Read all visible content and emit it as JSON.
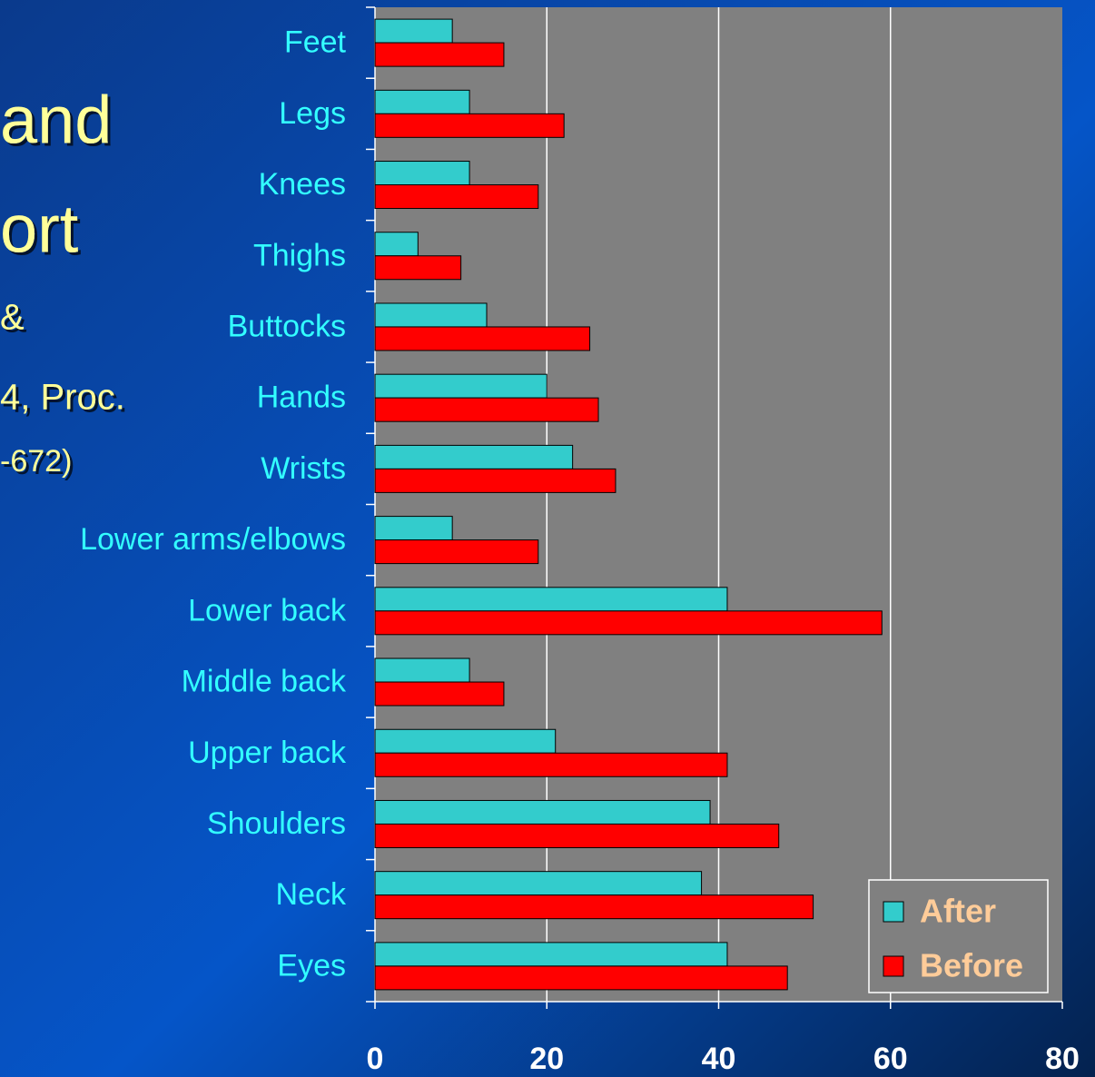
{
  "slide": {
    "text_lines": [
      "and",
      "ort",
      "&",
      "4, Proc.",
      "-672)"
    ]
  },
  "chart_data": {
    "type": "barh",
    "categories": [
      "Feet",
      "Legs",
      "Knees",
      "Thighs",
      "Buttocks",
      "Hands",
      "Wrists",
      "Lower arms/elbows",
      "Lower back",
      "Middle back",
      "Upper back",
      "Shoulders",
      "Neck",
      "Eyes"
    ],
    "series": [
      {
        "name": "After",
        "color": "#33cccc",
        "values": [
          9,
          11,
          11,
          5,
          13,
          20,
          23,
          9,
          41,
          11,
          21,
          39,
          38,
          41
        ]
      },
      {
        "name": "Before",
        "color": "#ff0000",
        "values": [
          15,
          22,
          19,
          10,
          25,
          26,
          28,
          19,
          59,
          15,
          41,
          47,
          51,
          48
        ]
      }
    ],
    "xlim": [
      0,
      80
    ],
    "xticks": [
      0,
      20,
      40,
      60,
      80
    ],
    "grid": true,
    "legend": "lower right"
  }
}
